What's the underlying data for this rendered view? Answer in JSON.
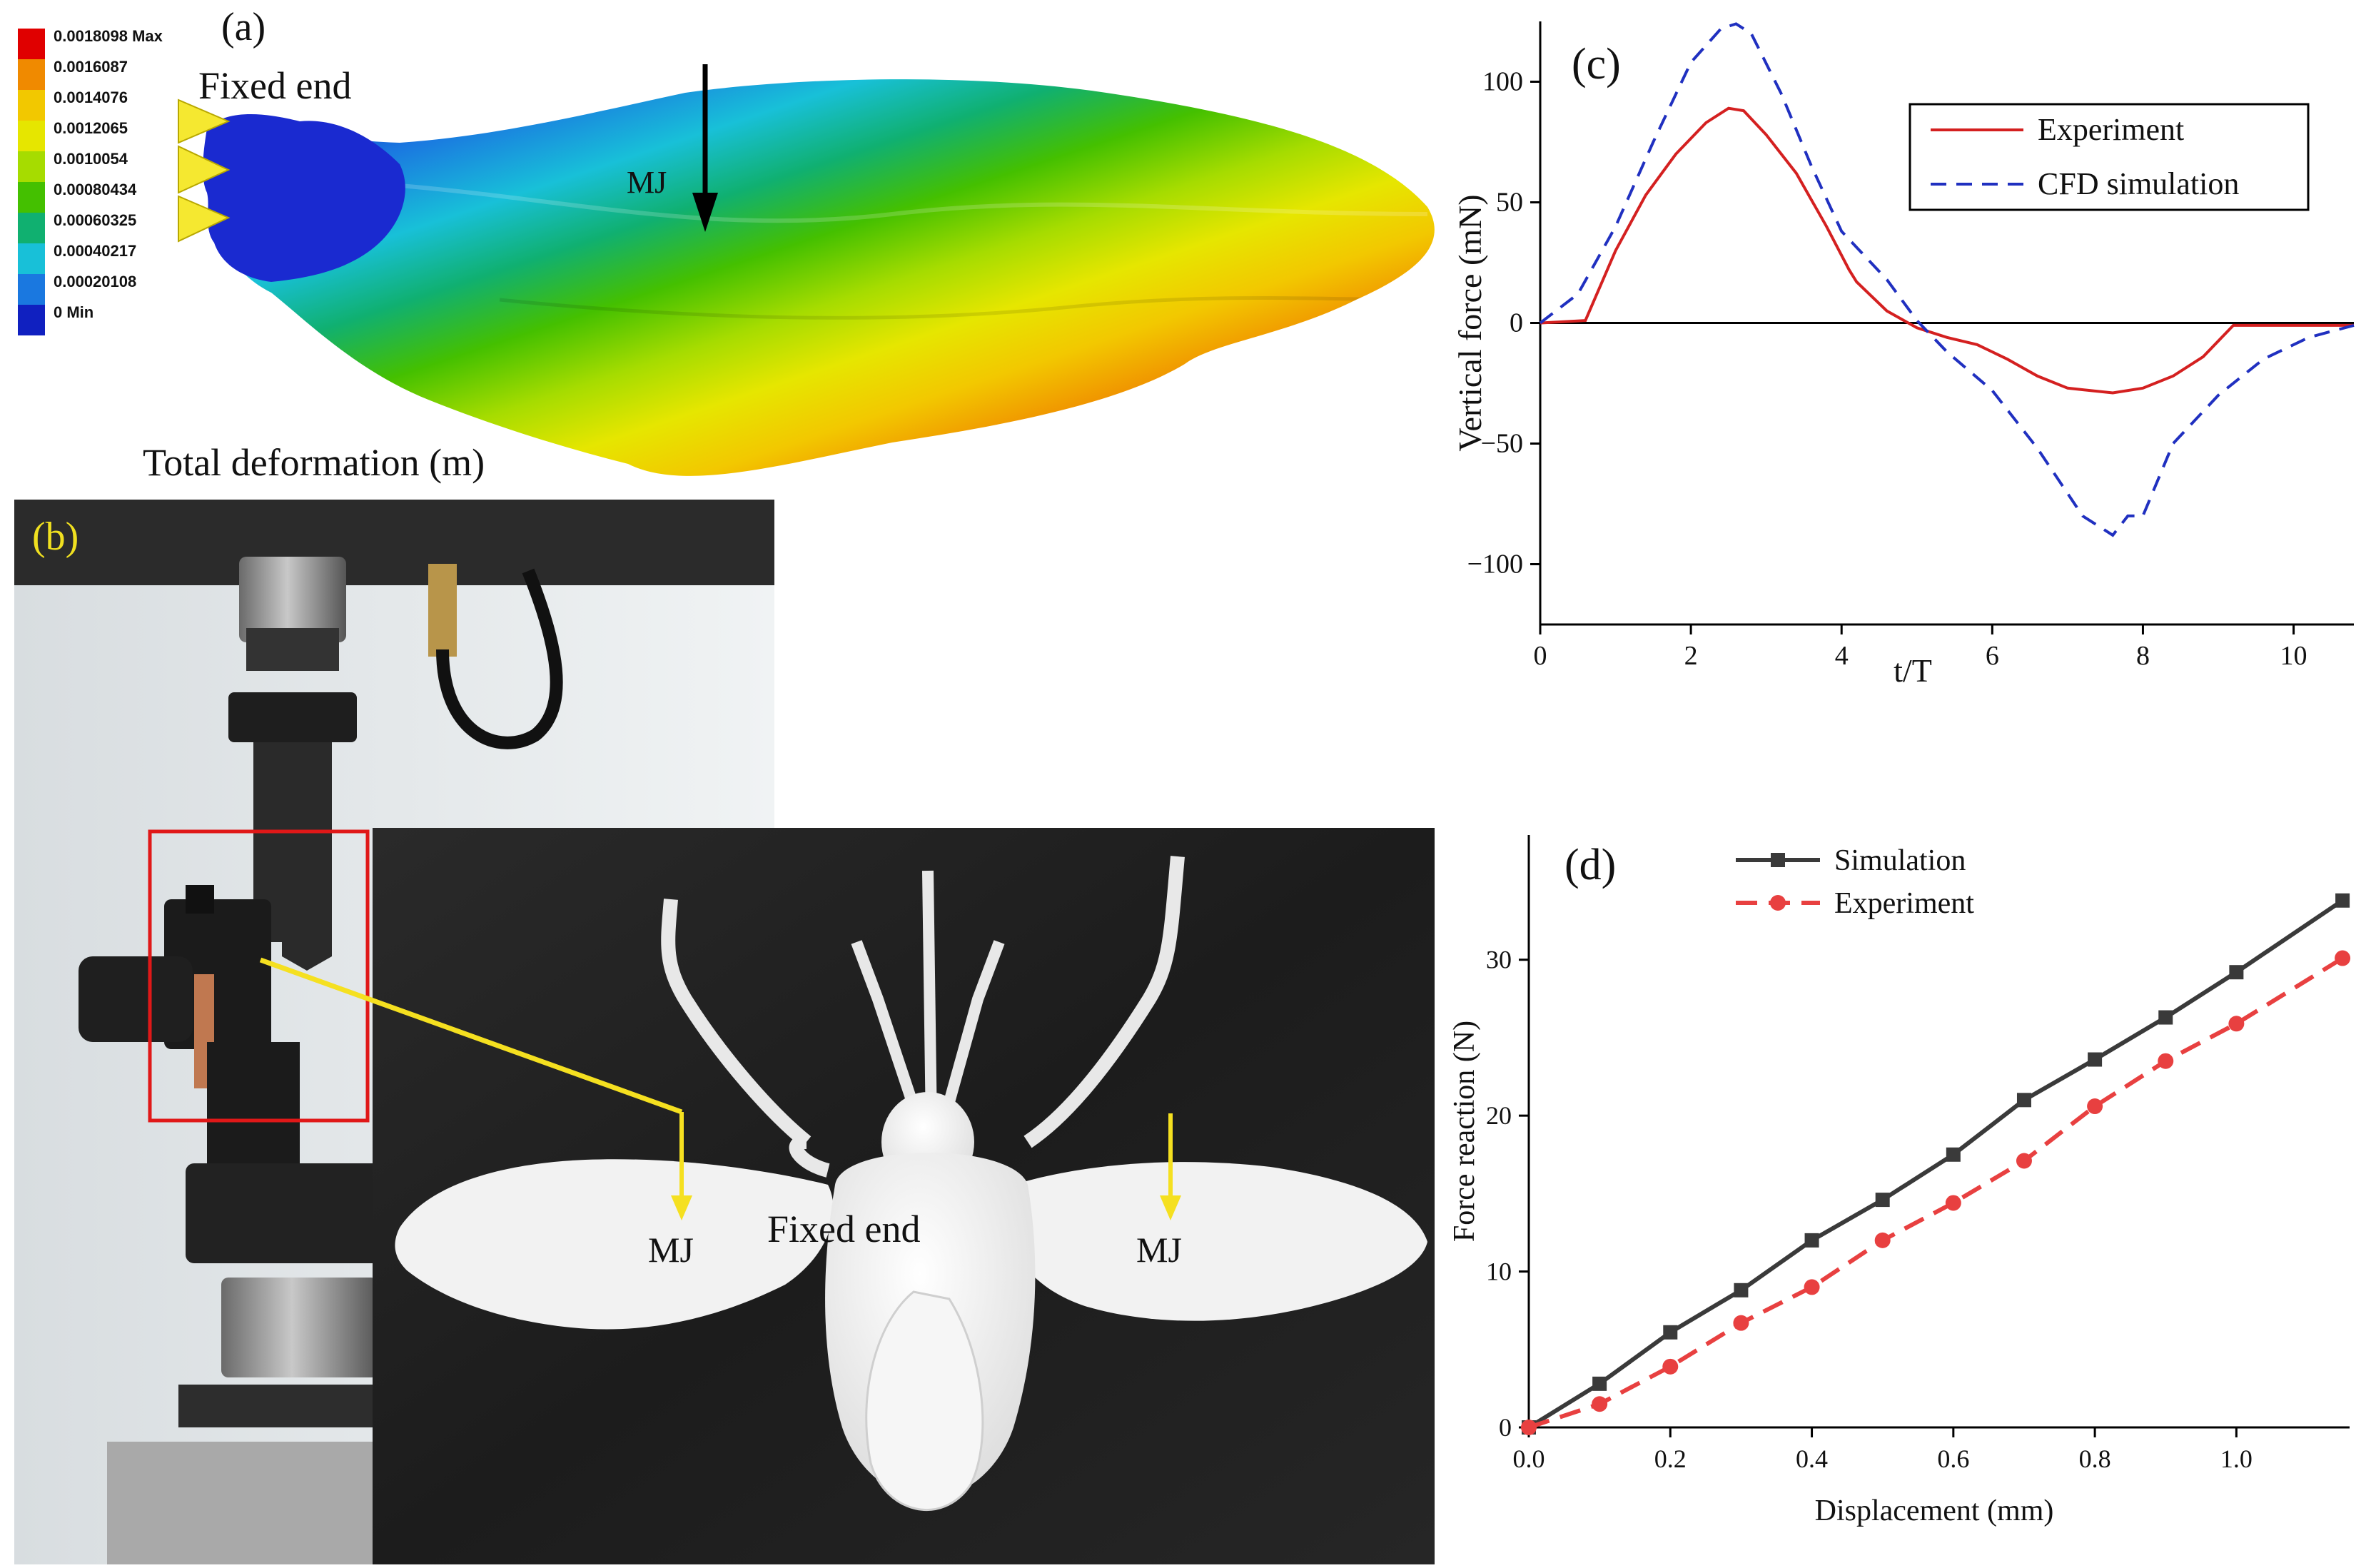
{
  "panel_a": {
    "label": "(a)",
    "fixed_end": "Fixed end",
    "mj": "MJ",
    "caption": "Total deformation (m)",
    "scale": {
      "levels": [
        "0.0018098 Max",
        "0.0016087",
        "0.0014076",
        "0.0012065",
        "0.0010054",
        "0.00080434",
        "0.00060325",
        "0.00040217",
        "0.00020108",
        "0 Min"
      ],
      "colors": [
        "#e00000",
        "#f08a00",
        "#f2c800",
        "#e6e600",
        "#a6dc00",
        "#44c000",
        "#10b070",
        "#18c0d8",
        "#1a78e0",
        "#1020c0"
      ]
    }
  },
  "panel_b": {
    "label": "(b)",
    "mj_left": "MJ",
    "mj_right": "MJ",
    "fixed_end": "Fixed end"
  },
  "chart_data": [
    {
      "panel_label": "(c)",
      "type": "line",
      "xlabel": "t/T",
      "ylabel": "Vertical force (mN)",
      "xlim": [
        0,
        10.8
      ],
      "ylim": [
        -125,
        125
      ],
      "xticks": [
        0,
        2,
        4,
        6,
        8,
        10
      ],
      "yticks": [
        100,
        50,
        0,
        -50,
        -100
      ],
      "legend_position": "top-right",
      "series": [
        {
          "name": "Experiment",
          "color": "#d42020",
          "dash": "solid",
          "x": [
            0,
            0.6,
            1.0,
            1.4,
            1.8,
            2.2,
            2.5,
            2.7,
            3.0,
            3.4,
            3.8,
            4.1,
            4.2,
            4.6,
            5.0,
            5.4,
            5.8,
            6.2,
            6.6,
            7.0,
            7.6,
            8.0,
            8.4,
            8.8,
            9.2,
            9.6,
            10.0,
            10.8
          ],
          "y": [
            0,
            1,
            30,
            53,
            70,
            83,
            89,
            88,
            78,
            62,
            40,
            22,
            17,
            5,
            -2,
            -6,
            -9,
            -15,
            -22,
            -27,
            -29,
            -27,
            -22,
            -14,
            -1,
            -1,
            -1,
            -1
          ]
        },
        {
          "name": "CFD simulation",
          "color": "#2030c0",
          "dash": "dashed",
          "x": [
            0,
            0.5,
            1.0,
            1.5,
            2.0,
            2.4,
            2.6,
            2.8,
            3.2,
            3.6,
            4.0,
            4.6,
            5.0,
            5.4,
            6.0,
            6.6,
            7.2,
            7.6,
            7.8,
            8.0,
            8.4,
            9.0,
            9.6,
            10.2,
            10.8
          ],
          "y": [
            0,
            12,
            40,
            75,
            108,
            122,
            124,
            120,
            95,
            65,
            38,
            18,
            1,
            -12,
            -28,
            -52,
            -80,
            -88,
            -80,
            -80,
            -50,
            -30,
            -15,
            -6,
            -1
          ]
        }
      ]
    },
    {
      "panel_label": "(d)",
      "type": "line",
      "xlabel": "Displacement (mm)",
      "ylabel": "Force reaction (N)",
      "xlim": [
        0,
        1.16
      ],
      "ylim": [
        0,
        38
      ],
      "xticks": [
        0.0,
        0.2,
        0.4,
        0.6,
        0.8,
        1.0
      ],
      "yticks": [
        0,
        10,
        20,
        30
      ],
      "legend_position": "top-left",
      "series": [
        {
          "name": "Simulation",
          "color": "#3a3a3a",
          "marker": "square",
          "dash": "solid",
          "x": [
            0,
            0.1,
            0.2,
            0.3,
            0.4,
            0.5,
            0.6,
            0.7,
            0.8,
            0.9,
            1.0,
            1.15
          ],
          "y": [
            0,
            2.8,
            6.1,
            8.8,
            12.0,
            14.6,
            17.5,
            21.0,
            23.6,
            26.3,
            29.2,
            33.8
          ]
        },
        {
          "name": "Experiment",
          "color": "#e84040",
          "marker": "circle",
          "dash": "dashed",
          "x": [
            0,
            0.1,
            0.2,
            0.3,
            0.4,
            0.5,
            0.6,
            0.7,
            0.8,
            0.9,
            1.0,
            1.15
          ],
          "y": [
            0,
            1.5,
            3.9,
            6.7,
            9.0,
            12.0,
            14.4,
            17.1,
            20.6,
            23.5,
            25.9,
            30.1
          ]
        }
      ]
    }
  ]
}
